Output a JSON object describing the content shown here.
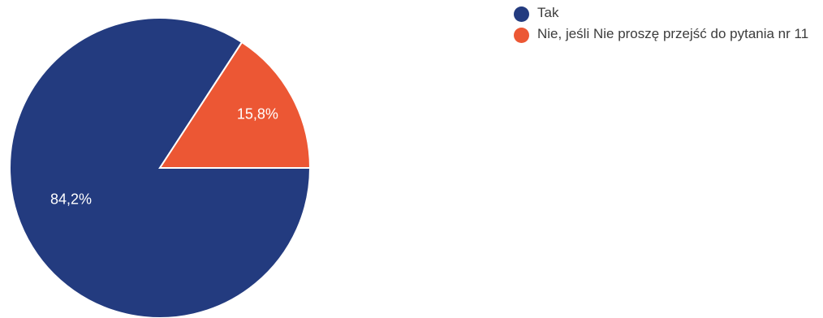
{
  "chart_data": {
    "type": "pie",
    "title": "",
    "categories": [
      "Tak",
      "Nie, jeśli Nie proszę przejść do pytania nr 11"
    ],
    "values": [
      84.2,
      15.8
    ],
    "labels": [
      "84,2%",
      "15,8%"
    ],
    "colors": [
      "#233b7f",
      "#ec5734"
    ],
    "start_angle_deg": 0,
    "direction": "counterclockwise-from-3-oclock-for-second-slice",
    "legend_position": "top-right"
  }
}
